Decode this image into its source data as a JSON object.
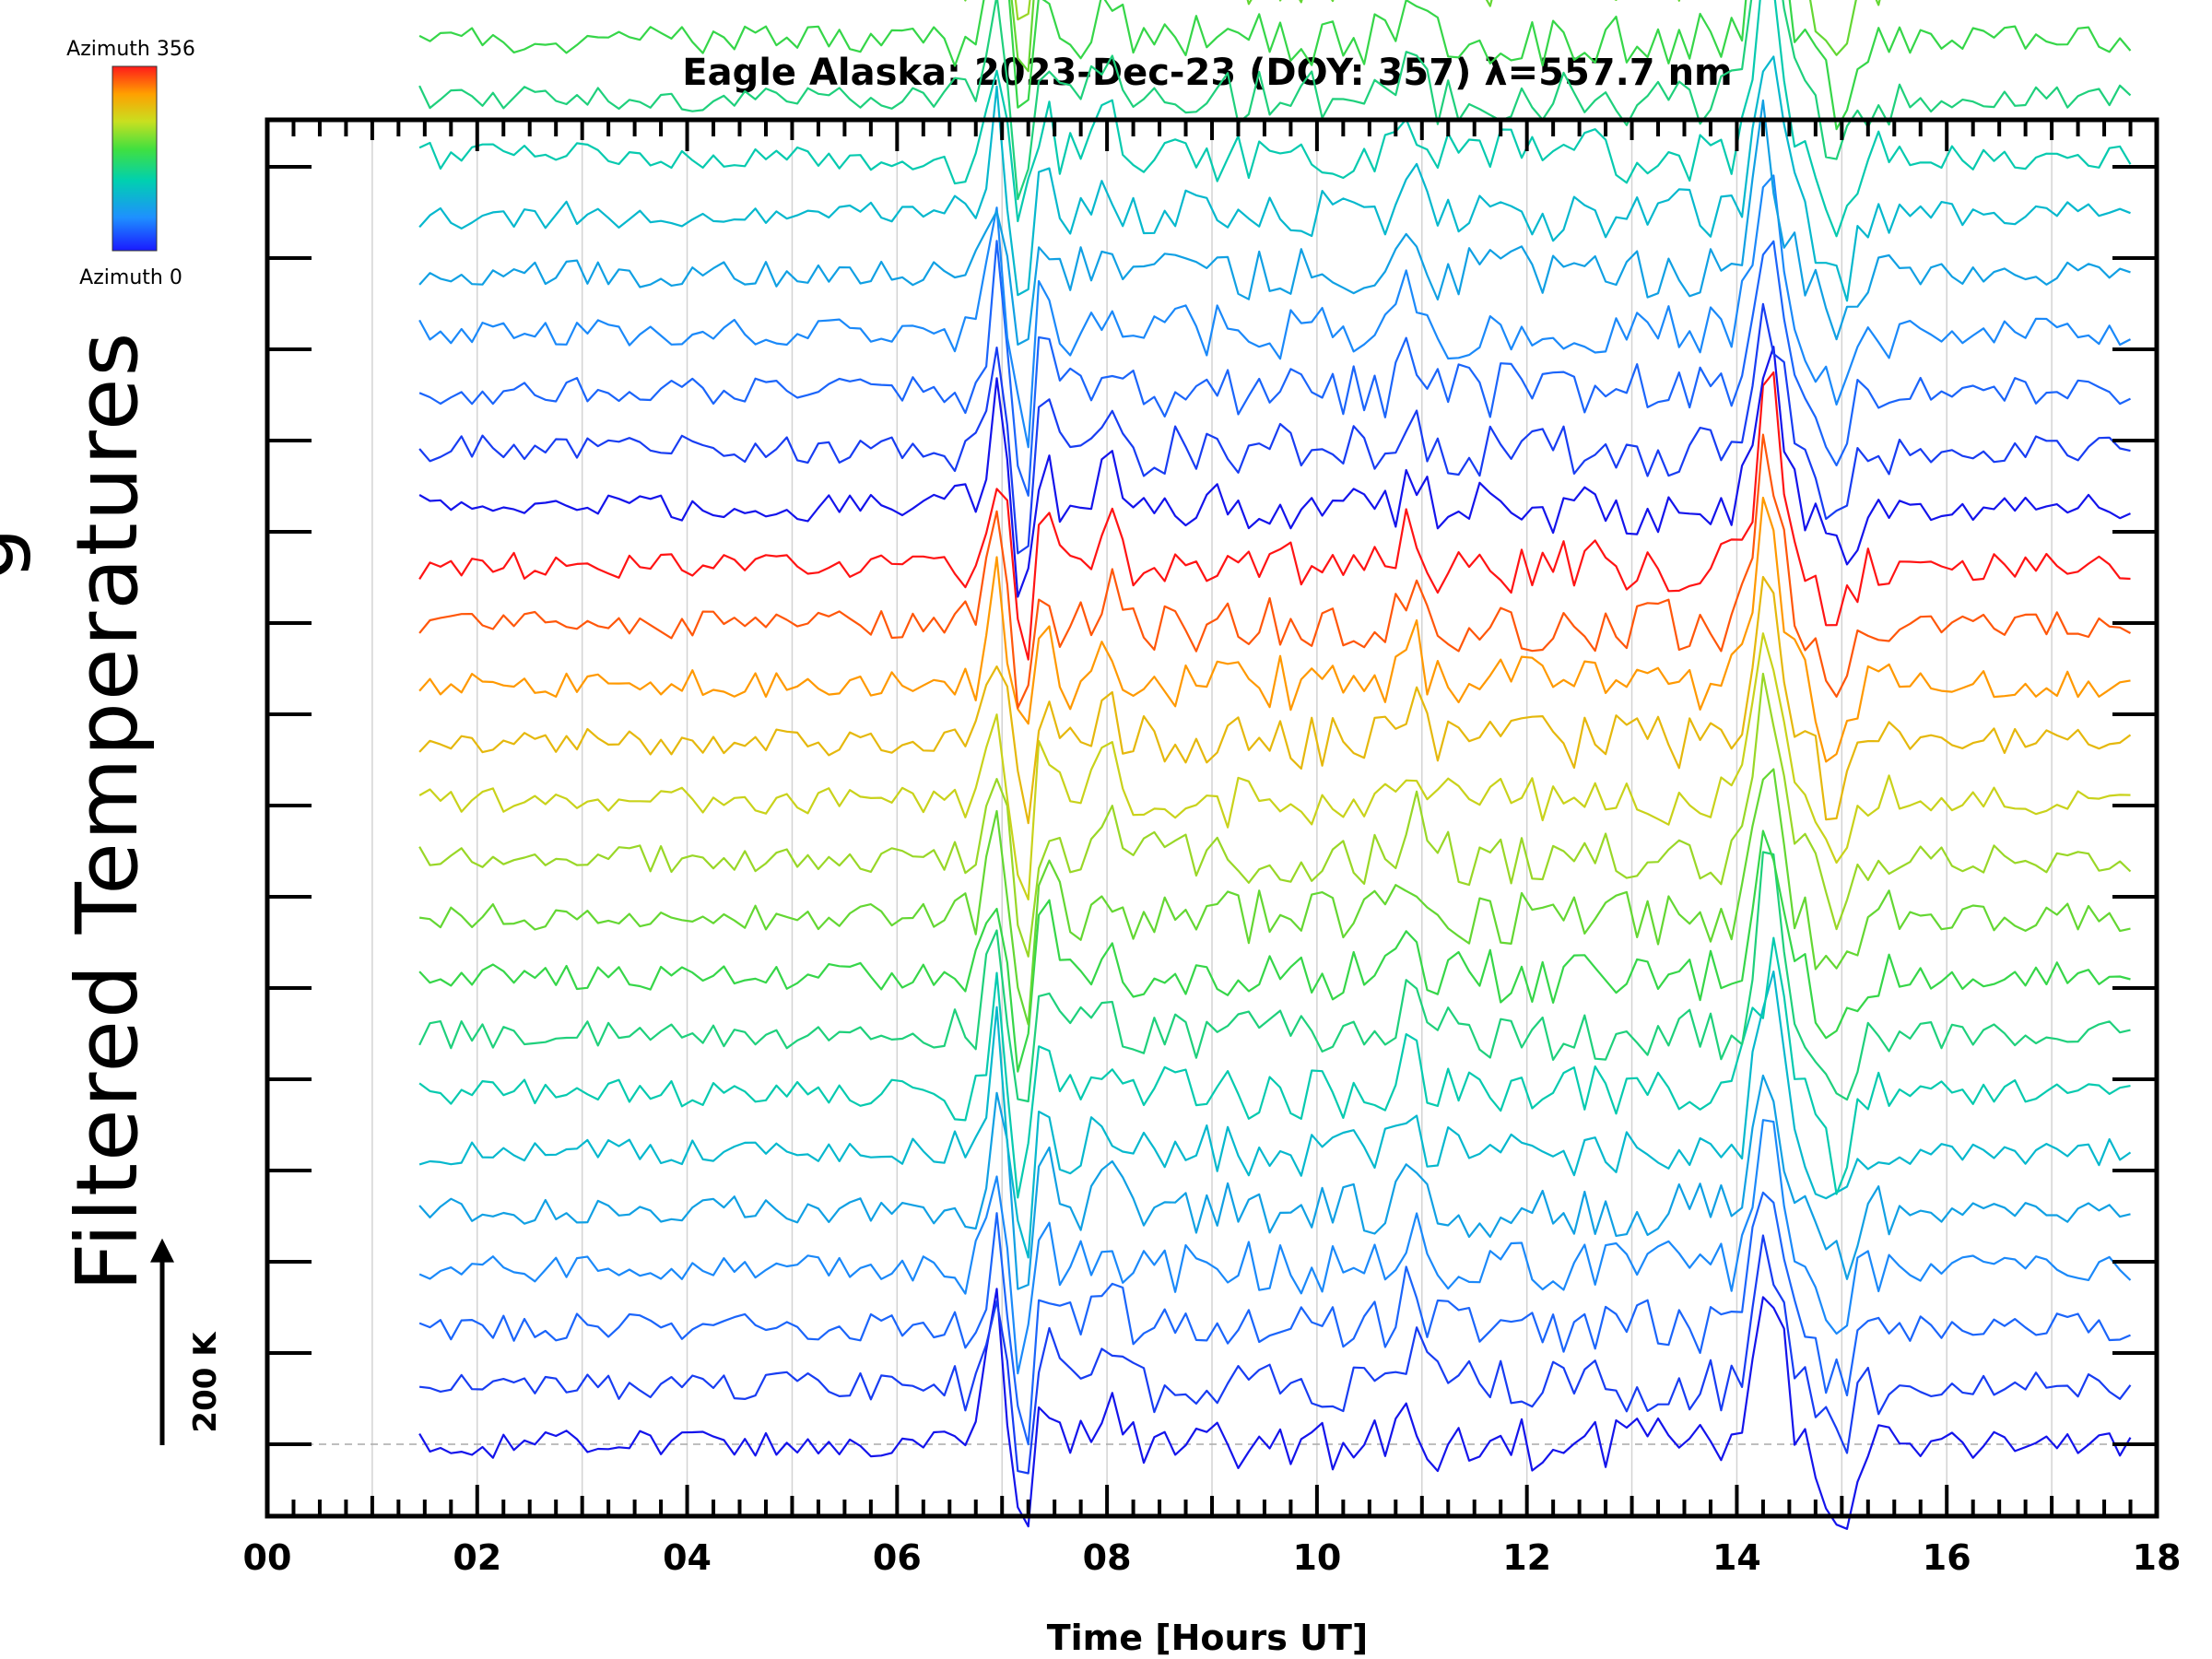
{
  "chart_data": {
    "type": "line",
    "subtype": "stacked-keogram-traces",
    "title": "Eagle Alaska: 2023-Dec-23 (DOY: 357) λ=557.7 nm",
    "xlabel": "Time [Hours UT]",
    "ylabel": "Filtered Temperatures",
    "ylabel_prefix_partial": "g",
    "xlim": [
      0,
      18
    ],
    "x_tick_labels": [
      "00",
      "02",
      "04",
      "06",
      "08",
      "10",
      "12",
      "14",
      "16",
      "18"
    ],
    "x_major_step_hours": 2,
    "x_minor_step_hours": 0.25,
    "data_start_hour": 1.45,
    "data_end_hour": 17.8,
    "y_major_tick_count": 15,
    "scale_bar_label": "200 K",
    "scale_bar_kelvin": 200,
    "num_traces": 96,
    "traces_per_scan": 16,
    "trace_spacing_kelvin": 30,
    "legend": {
      "top_label": "Azimuth 356",
      "bottom_label": "Azimuth 0",
      "azimuth_min": 0,
      "azimuth_max": 356,
      "colormap": "rainbow"
    },
    "events": [
      {
        "hour": 6.95,
        "amplitude_kelvin": 60,
        "width_hours": 0.12,
        "description": "sharp peak"
      },
      {
        "hour": 7.2,
        "amplitude_kelvin": -55,
        "width_hours": 0.12,
        "description": "dip after peak"
      },
      {
        "hour": 7.4,
        "amplitude_kelvin": 35,
        "width_hours": 0.1,
        "description": "secondary peak"
      },
      {
        "hour": 8.0,
        "amplitude_kelvin": 20,
        "width_hours": 0.15,
        "description": "minor peak"
      },
      {
        "hour": 10.9,
        "amplitude_kelvin": 25,
        "width_hours": 0.12,
        "description": "minor peak"
      },
      {
        "hour": 14.3,
        "amplitude_kelvin": 85,
        "width_hours": 0.18,
        "description": "major peak"
      },
      {
        "hour": 14.95,
        "amplitude_kelvin": -35,
        "width_hours": 0.2,
        "description": "dip after major peak"
      }
    ],
    "colors": {
      "axis": "#000000",
      "grid": "#d3d3d3",
      "baseline": "#aaaaaa"
    }
  }
}
